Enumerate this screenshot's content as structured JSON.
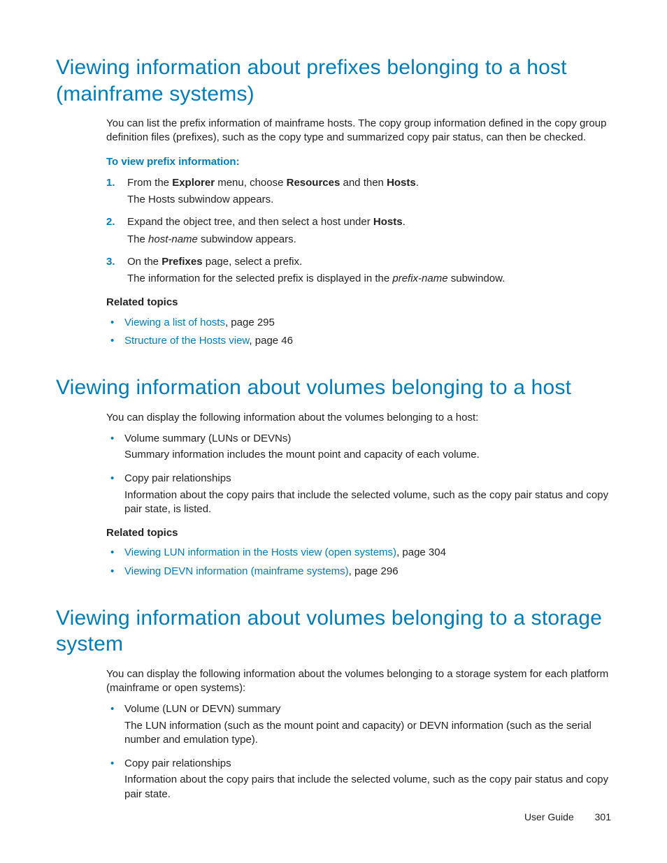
{
  "section1": {
    "heading": "Viewing information about prefixes belonging to a host (mainframe systems)",
    "intro": "You can list the prefix information of mainframe hosts. The copy group information defined in the copy group definition files (prefixes), such as the copy type and summarized copy pair status, can then be checked.",
    "procedure_title": "To view prefix information:",
    "steps": {
      "s1": {
        "num": "1.",
        "pre": "From the ",
        "b1": "Explorer",
        "mid1": " menu, choose ",
        "b2": "Resources",
        "mid2": " and then ",
        "b3": "Hosts",
        "post": ".",
        "sub": "The Hosts subwindow appears."
      },
      "s2": {
        "num": "2.",
        "pre": "Expand the object tree, and then select a host under ",
        "b1": "Hosts",
        "post": ".",
        "sub_pre": "The ",
        "sub_it": "host-name",
        "sub_post": " subwindow appears."
      },
      "s3": {
        "num": "3.",
        "pre": "On the ",
        "b1": "Prefixes",
        "post": " page, select a prefix.",
        "sub_pre": "The information for the selected prefix is displayed in the ",
        "sub_it": "prefix-name",
        "sub_post": " subwindow."
      }
    },
    "related_title": "Related topics",
    "related": {
      "r1": {
        "link": "Viewing a list of hosts",
        "rest": ", page 295"
      },
      "r2": {
        "link": "Structure of the Hosts view",
        "rest": ", page 46"
      }
    }
  },
  "section2": {
    "heading": "Viewing information about volumes belonging to a host",
    "intro": "You can display the following information about the volumes belonging to a host:",
    "items": {
      "i1": {
        "term": "Volume summary (LUNs or DEVNs)",
        "desc": "Summary information includes the mount point and capacity of each volume."
      },
      "i2": {
        "term": "Copy pair relationships",
        "desc": "Information about the copy pairs that include the selected volume, such as the copy pair status and copy pair state, is listed."
      }
    },
    "related_title": "Related topics",
    "related": {
      "r1": {
        "link": "Viewing LUN information in the Hosts view (open systems)",
        "rest": ", page 304"
      },
      "r2": {
        "link": "Viewing DEVN information (mainframe systems)",
        "rest": ", page 296"
      }
    }
  },
  "section3": {
    "heading": "Viewing information about volumes belonging to a storage system",
    "intro": "You can display the following information about the volumes belonging to a storage system for each platform (mainframe or open systems):",
    "items": {
      "i1": {
        "term": "Volume (LUN or DEVN) summary",
        "desc": "The LUN information (such as the mount point and capacity) or DEVN information (such as the serial number and emulation type)."
      },
      "i2": {
        "term": "Copy pair relationships",
        "desc": "Information about the copy pairs that include the selected volume, such as the copy pair status and copy pair state."
      }
    }
  },
  "footer": {
    "label": "User Guide",
    "page": "301"
  }
}
